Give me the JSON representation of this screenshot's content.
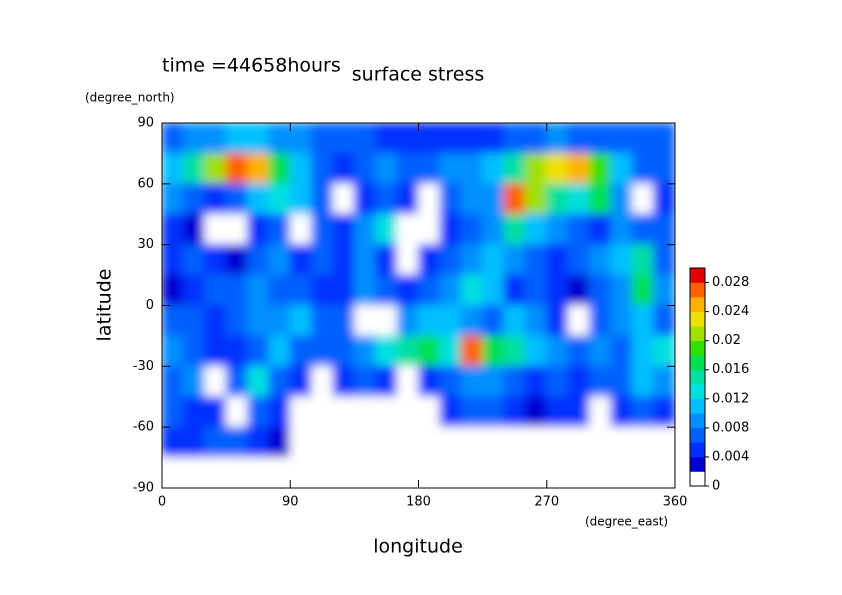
{
  "chart_data": {
    "type": "contour",
    "title": "surface stress",
    "subtitle": "time =44658hours",
    "xlabel": "longitude",
    "xunit": "(degree_east)",
    "ylabel": "latitude",
    "yunit": "(degree_north)",
    "xlim": [
      0,
      360
    ],
    "xticks": [
      0,
      90,
      180,
      270,
      360
    ],
    "ylim": [
      -90,
      90
    ],
    "yticks": [
      -90,
      -60,
      -30,
      0,
      30,
      60,
      90
    ],
    "x": [
      7.5,
      22.5,
      37.5,
      52.5,
      67.5,
      82.5,
      97.5,
      112.5,
      127.5,
      142.5,
      157.5,
      172.5,
      187.5,
      202.5,
      217.5,
      232.5,
      247.5,
      262.5,
      277.5,
      292.5,
      307.5,
      322.5,
      337.5,
      352.5
    ],
    "y": [
      82.5,
      67.5,
      52.5,
      37.5,
      22.5,
      7.5,
      -7.5,
      -22.5,
      -37.5,
      -52.5,
      -67.5,
      -82.5
    ],
    "z": [
      [
        0.006,
        0.008,
        0.008,
        0.01,
        0.01,
        0.008,
        0.008,
        0.006,
        0.006,
        0.006,
        0.004,
        0.004,
        0.004,
        0.004,
        0.004,
        0.004,
        0.006,
        0.006,
        0.008,
        0.006,
        0.006,
        0.006,
        0.006,
        0.006
      ],
      [
        0.01,
        0.014,
        0.02,
        0.026,
        0.024,
        0.016,
        0.01,
        0.006,
        0.004,
        0.006,
        0.008,
        0.006,
        0.006,
        0.008,
        0.008,
        0.01,
        0.014,
        0.02,
        0.022,
        0.024,
        0.018,
        0.01,
        0.006,
        0.006
      ],
      [
        0.008,
        0.006,
        0.004,
        0.006,
        0.01,
        0.012,
        0.01,
        0.006,
        0.001,
        0.004,
        0.006,
        0.004,
        0.001,
        0.006,
        0.008,
        0.008,
        0.026,
        0.02,
        0.014,
        0.012,
        0.016,
        0.008,
        0.001,
        0.004
      ],
      [
        0.004,
        0.002,
        0.001,
        0.001,
        0.004,
        0.006,
        0.001,
        0.006,
        0.004,
        0.008,
        0.012,
        0.001,
        0.001,
        0.004,
        0.006,
        0.008,
        0.014,
        0.01,
        0.008,
        0.006,
        0.004,
        0.008,
        0.006,
        0.006
      ],
      [
        0.004,
        0.006,
        0.004,
        0.002,
        0.006,
        0.008,
        0.004,
        0.006,
        0.004,
        0.008,
        0.004,
        0.001,
        0.004,
        0.006,
        0.008,
        0.01,
        0.008,
        0.006,
        0.004,
        0.006,
        0.008,
        0.01,
        0.014,
        0.006
      ],
      [
        0.002,
        0.004,
        0.006,
        0.006,
        0.008,
        0.006,
        0.006,
        0.004,
        0.004,
        0.008,
        0.006,
        0.004,
        0.006,
        0.008,
        0.012,
        0.01,
        0.004,
        0.006,
        0.004,
        0.002,
        0.006,
        0.008,
        0.016,
        0.008
      ],
      [
        0.006,
        0.006,
        0.004,
        0.006,
        0.008,
        0.008,
        0.01,
        0.006,
        0.006,
        0.001,
        0.001,
        0.008,
        0.01,
        0.01,
        0.008,
        0.006,
        0.01,
        0.008,
        0.004,
        0.001,
        0.006,
        0.008,
        0.01,
        0.006
      ],
      [
        0.008,
        0.006,
        0.004,
        0.004,
        0.006,
        0.01,
        0.006,
        0.006,
        0.006,
        0.008,
        0.012,
        0.014,
        0.016,
        0.012,
        0.026,
        0.016,
        0.014,
        0.01,
        0.008,
        0.006,
        0.008,
        0.006,
        0.01,
        0.012
      ],
      [
        0.006,
        0.008,
        0.001,
        0.006,
        0.012,
        0.006,
        0.004,
        0.001,
        0.004,
        0.006,
        0.004,
        0.001,
        0.004,
        0.006,
        0.008,
        0.008,
        0.006,
        0.004,
        0.006,
        0.004,
        0.006,
        0.006,
        0.01,
        0.008
      ],
      [
        0.006,
        0.004,
        0.004,
        0.001,
        0.006,
        0.004,
        0.001,
        0.001,
        0.001,
        0.001,
        0.001,
        0.001,
        0.001,
        0.004,
        0.006,
        0.006,
        0.004,
        0.002,
        0.004,
        0.004,
        0.001,
        0.004,
        0.006,
        0.004
      ],
      [
        0.004,
        0.004,
        0.006,
        0.006,
        0.004,
        0.002,
        0.001,
        0.001,
        0.001,
        0.001,
        0.001,
        0.001,
        0.001,
        0.001,
        0.001,
        0.001,
        0.001,
        0.001,
        0.001,
        0.001,
        0.001,
        0.001,
        0.001,
        0.001
      ],
      [
        0,
        0,
        0,
        0,
        0,
        0,
        0,
        0,
        0,
        0,
        0,
        0,
        0,
        0,
        0,
        0,
        0,
        0,
        0,
        0,
        0,
        0,
        0,
        0
      ]
    ],
    "zlim": [
      0,
      0.03
    ],
    "zticks": [
      0,
      0.004,
      0.008,
      0.012,
      0.016,
      0.02,
      0.024,
      0.028
    ],
    "colors": [
      "#ffffff",
      "#0000d0",
      "#0030ff",
      "#0060ff",
      "#0090ff",
      "#00c0ff",
      "#00e0e0",
      "#00e0a0",
      "#00e050",
      "#30e000",
      "#a0e000",
      "#f0e000",
      "#ffb000",
      "#ff6000",
      "#e00000"
    ]
  }
}
